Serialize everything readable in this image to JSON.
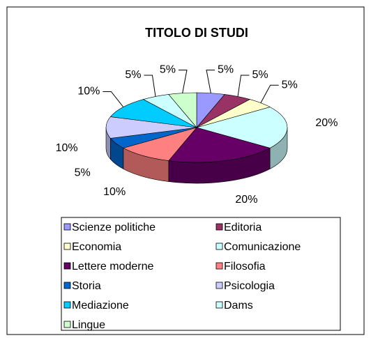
{
  "chart_data": {
    "type": "pie3d",
    "title": "TITOLO DI STUDI",
    "categories": [
      "Scienze politiche",
      "Editoria",
      "Economia",
      "Comunicazione",
      "Lettere moderne",
      "Filosofia",
      "Storia",
      "Psicologia",
      "Mediazione",
      "Dams",
      "Lingue"
    ],
    "values": [
      5,
      5,
      5,
      20,
      20,
      10,
      5,
      10,
      10,
      5,
      5
    ],
    "value_labels": [
      "5%",
      "5%",
      "5%",
      "20%",
      "20%",
      "10%",
      "5%",
      "10%",
      "10%",
      "5%",
      "5%"
    ],
    "colors": [
      "#9999ff",
      "#993366",
      "#ffffcc",
      "#ccffff",
      "#660066",
      "#ff8080",
      "#0066cc",
      "#ccccff",
      "#00ccff",
      "#ccffff",
      "#ccffcc"
    ],
    "legend": "bottom"
  }
}
